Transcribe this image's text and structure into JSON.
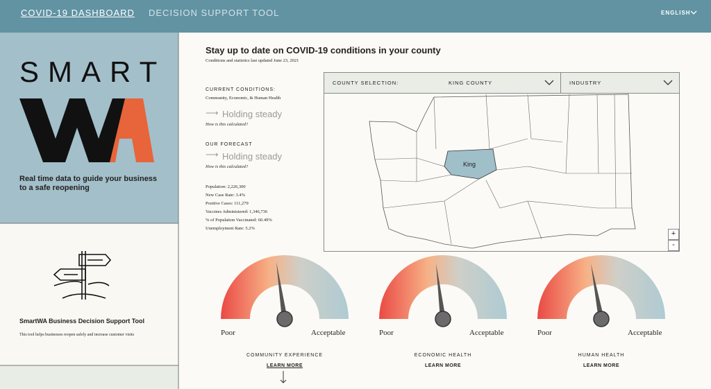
{
  "nav": {
    "title": "COVID-19 DASHBOARD",
    "tool": "DECISION SUPPORT TOOL",
    "language": "ENGLISH"
  },
  "sidebar": {
    "logo_top": "SMART",
    "tagline": "Real time data to guide your business to a safe reopening",
    "tool_name": "SmartWA Business Decision Support Tool",
    "tool_description": "This tool helps businesses reopen safely and increase customer visits"
  },
  "main": {
    "title": "Stay up to date on COVID-19 conditions in your county",
    "updated": "Conditions and statistics last updated June 23, 2021",
    "current": {
      "label": "CURRENT CONDITIONS:",
      "sub": "Community, Economic, & Human Health",
      "status": "Holding steady",
      "link": "How is this calculated?"
    },
    "forecast": {
      "label": "OUR FORECAST",
      "status": "Holding steady",
      "link": "How is this calculated?"
    },
    "stats": [
      "Population: 2,226,300",
      "New Case Rate: 3.4%",
      "Positive Cases: 111,279",
      "Vaccines Administered: 1,346,736",
      "% of Population Vaccinated: 60.49%",
      "Unemployment Rate: 5.2%"
    ]
  },
  "map": {
    "county_label": "COUNTY SELECTION:",
    "county": "KING COUNTY",
    "industry": "INDUSTRY",
    "highlight": "King",
    "zoom_in": "+",
    "zoom_out": "-"
  },
  "gauges": [
    {
      "title": "COMMUNITY EXPERIENCE",
      "low": "Poor",
      "high": "Acceptable",
      "link": "LEARN MORE"
    },
    {
      "title": "ECONOMIC HEALTH",
      "low": "Poor",
      "high": "Acceptable",
      "link": "LEARN MORE"
    },
    {
      "title": "HUMAN HEALTH",
      "low": "Poor",
      "high": "Acceptable",
      "link": "LEARN MORE"
    }
  ]
}
